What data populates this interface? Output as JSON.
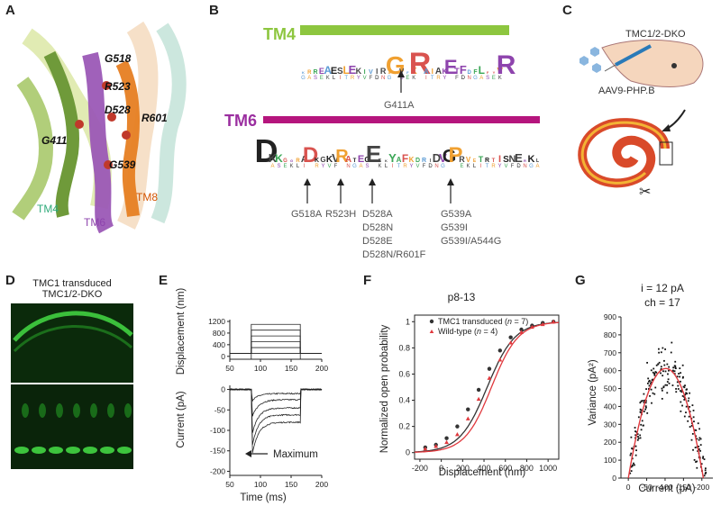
{
  "panels": {
    "A": {
      "label": "A",
      "residues": [
        "G518",
        "R523",
        "D528",
        "R601",
        "G411",
        "G539"
      ],
      "helices": [
        "TM4",
        "TM6",
        "TM8"
      ]
    },
    "B": {
      "label": "B",
      "tm4_title": "TM4",
      "tm6_title": "TM6",
      "tm4_mutation": "G411A",
      "tm6_mutations": [
        [
          "G518A"
        ],
        [
          "R523H"
        ],
        [
          "D528A",
          "D528N",
          "D528E",
          "D528N/R601F"
        ],
        [
          "G539A",
          "G539I",
          "G539I/A544G"
        ]
      ],
      "colors": {
        "tm4": "#8dc63f",
        "tm6": "#b5157d"
      }
    },
    "C": {
      "label": "C",
      "mouse_label": "TMC1/2-DKO",
      "virus_label": "AAV9-PHP.B"
    },
    "D": {
      "label": "D",
      "title_line1": "TMC1 transduced",
      "title_line2": "TMC1/2-DKO"
    },
    "E": {
      "label": "E",
      "annotation": "Maximum",
      "top_ylabel": "Displacement (nm)",
      "bottom_ylabel": "Current (pA)",
      "xlabel": "Time (ms)"
    },
    "F": {
      "label": "F",
      "title": "p8-13",
      "legend": [
        {
          "name": "TMC1 transduced",
          "n_text": "n",
          "n_val": " = 7)"
        },
        {
          "name": "Wild-type",
          "n_text": "n",
          "n_val": " = 4)"
        }
      ]
    },
    "G": {
      "label": "G",
      "annot_i": "i = 12 pA",
      "annot_ch": "ch = 17"
    }
  },
  "chart_data": [
    {
      "id": "E-displacement",
      "type": "line",
      "title": "",
      "xlabel": "",
      "ylabel": "Displacement (nm)",
      "xlim": [
        50,
        200
      ],
      "ylim": [
        -100,
        1200
      ],
      "xticks": [
        50,
        100,
        150,
        200
      ],
      "yticks": [
        0,
        400,
        800,
        1200
      ],
      "step_levels": [
        -100,
        100,
        300,
        500,
        700,
        900,
        1100
      ],
      "step_on": 85,
      "step_off": 165
    },
    {
      "id": "E-current",
      "type": "line",
      "title": "",
      "xlabel": "Time (ms)",
      "ylabel": "Current (pA)",
      "xlim": [
        50,
        200
      ],
      "ylim": [
        -210,
        10
      ],
      "xticks": [
        50,
        100,
        150,
        200
      ],
      "yticks": [
        0,
        -50,
        -100,
        -150,
        -200
      ],
      "traces_peak": [
        -30,
        -75,
        -120,
        -150,
        -172
      ],
      "traces_steady": [
        -10,
        -25,
        -45,
        -62,
        -80
      ],
      "step_on": 85,
      "step_off": 165
    },
    {
      "id": "F-boltzmann",
      "type": "scatter",
      "title": "p8-13",
      "xlabel": "Displacement (nm)",
      "ylabel": "Normalized open probability",
      "xlim": [
        -250,
        1100
      ],
      "ylim": [
        -0.05,
        1.05
      ],
      "xticks": [
        -200,
        0,
        200,
        400,
        600,
        800,
        1000
      ],
      "yticks": [
        0,
        0.2,
        0.4,
        0.6,
        0.8,
        1
      ],
      "series": [
        {
          "name": "TMC1 transduced",
          "color": "#333333",
          "fit": {
            "x50": 430,
            "slope": 130
          },
          "x": [
            -150,
            -50,
            50,
            150,
            250,
            350,
            450,
            550,
            650,
            750,
            850,
            950,
            1050
          ],
          "y": [
            0.04,
            0.06,
            0.11,
            0.2,
            0.33,
            0.48,
            0.64,
            0.78,
            0.88,
            0.94,
            0.97,
            0.99,
            1.0
          ]
        },
        {
          "name": "Wild-type",
          "color": "#e0393e",
          "fit": {
            "x50": 470,
            "slope": 125
          },
          "x": [
            -150,
            -50,
            50,
            150,
            250,
            350,
            450,
            550,
            650,
            750,
            850,
            950,
            1050
          ],
          "y": [
            0.03,
            0.05,
            0.08,
            0.14,
            0.26,
            0.41,
            0.57,
            0.71,
            0.84,
            0.92,
            0.96,
            0.98,
            1.0
          ]
        }
      ]
    },
    {
      "id": "G-variance",
      "type": "scatter",
      "title": "",
      "xlabel": "Current (pA)",
      "ylabel": "Variance (pA²)",
      "xlim": [
        20,
        -230
      ],
      "ylim": [
        0,
        900
      ],
      "xticks": [
        0,
        -50,
        -100,
        -150,
        -200
      ],
      "yticks": [
        0,
        100,
        200,
        300,
        400,
        500,
        600,
        700,
        800,
        900
      ],
      "fit": {
        "i": 12,
        "N": 17
      },
      "n_points": 230,
      "scatter_sd": 70
    }
  ]
}
